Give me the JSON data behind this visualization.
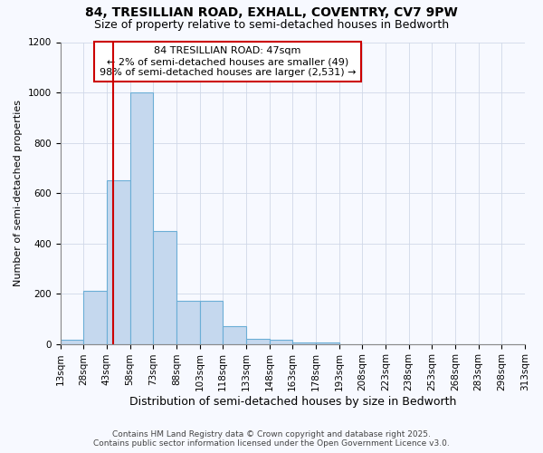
{
  "title_line1": "84, TRESILLIAN ROAD, EXHALL, COVENTRY, CV7 9PW",
  "title_line2": "Size of property relative to semi-detached houses in Bedworth",
  "xlabel": "Distribution of semi-detached houses by size in Bedworth",
  "ylabel": "Number of semi-detached properties",
  "annotation_title": "84 TRESILLIAN ROAD: 47sqm",
  "annotation_line2": "← 2% of semi-detached houses are smaller (49)",
  "annotation_line3": "98% of semi-detached houses are larger (2,531) →",
  "footer_line1": "Contains HM Land Registry data © Crown copyright and database right 2025.",
  "footer_line2": "Contains public sector information licensed under the Open Government Licence v3.0.",
  "bin_edges": [
    13,
    28,
    43,
    58,
    73,
    88,
    103,
    118,
    133,
    148,
    163,
    178,
    193,
    208,
    223,
    238,
    253,
    268,
    283,
    298,
    313
  ],
  "bar_values": [
    15,
    210,
    650,
    1000,
    450,
    170,
    170,
    70,
    20,
    15,
    5,
    5,
    0,
    0,
    0,
    0,
    0,
    0,
    0,
    0
  ],
  "bar_color": "#c5d8ee",
  "bar_edge_color": "#6baed6",
  "vline_x": 47,
  "vline_color": "#cc0000",
  "annotation_box_color": "#cc0000",
  "background_color": "#f7f9ff",
  "grid_color": "#d0d8e8",
  "ylim": [
    0,
    1200
  ],
  "yticks": [
    0,
    200,
    400,
    600,
    800,
    1000,
    1200
  ],
  "title1_fontsize": 10,
  "title2_fontsize": 9,
  "ylabel_fontsize": 8,
  "xlabel_fontsize": 9,
  "tick_fontsize": 7.5,
  "footer_fontsize": 6.5
}
